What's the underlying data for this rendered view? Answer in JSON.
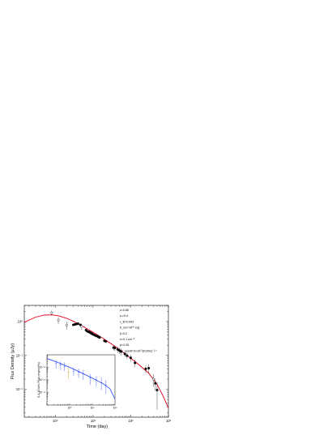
{
  "chart_data": [
    {
      "type": "scatter",
      "xlabel": "Time (day)",
      "ylabel": "Flux Density (μJy)",
      "x_scale": "log",
      "y_scale": "log",
      "xlim": [
        0.15,
        1000
      ],
      "ylim": [
        0.0015,
        3
      ],
      "x_ticks": [
        {
          "v": 1,
          "label": "10⁰"
        },
        {
          "v": 10,
          "label": "10¹"
        },
        {
          "v": 100,
          "label": "10²"
        },
        {
          "v": 1000,
          "label": "10³"
        }
      ],
      "y_ticks": [
        {
          "v": 0.01,
          "label": "10⁻²"
        },
        {
          "v": 0.1,
          "label": "10⁻¹"
        },
        {
          "v": 1,
          "label": "10⁰"
        }
      ],
      "parameters": [
        "z=0.85",
        "εₑ=0.4",
        "ε_B=0.003",
        "E_iso=10⁵⁰ erg",
        "ξ=0.2",
        "n=0.1 cm⁻³",
        "p=2.05",
        "dE_iso/dt=3×10⁵¹(t/100s)⁻²·⁰"
      ],
      "series": [
        {
          "type": "curve",
          "color": "#e0001b",
          "x": [
            0.15,
            0.3,
            0.5,
            0.8,
            1.2,
            2,
            3,
            5,
            8,
            12,
            20,
            40,
            80,
            150,
            300,
            500,
            700,
            1000
          ],
          "y": [
            0.95,
            1.35,
            1.55,
            1.58,
            1.48,
            1.25,
            1.02,
            0.76,
            0.56,
            0.43,
            0.3,
            0.18,
            0.1,
            0.058,
            0.03,
            0.014,
            0.0068,
            0.0028
          ]
        },
        {
          "type": "points",
          "color": "#000000",
          "points": [
            {
              "x": 3.0,
              "y": 0.8,
              "err": 0.06
            },
            {
              "x": 3.3,
              "y": 0.82,
              "err": 0.06
            },
            {
              "x": 3.6,
              "y": 0.84,
              "err": 0.06
            },
            {
              "x": 4.0,
              "y": 0.87,
              "err": 0.06
            },
            {
              "x": 4.6,
              "y": 0.8,
              "err": 0.06
            },
            {
              "x": 6.5,
              "y": 0.56,
              "err": 0.05
            },
            {
              "x": 7.0,
              "y": 0.52,
              "err": 0.05
            },
            {
              "x": 7.5,
              "y": 0.5,
              "err": 0.05
            },
            {
              "x": 8.0,
              "y": 0.49,
              "err": 0.05
            },
            {
              "x": 8.5,
              "y": 0.47,
              "err": 0.05
            },
            {
              "x": 9.0,
              "y": 0.45,
              "err": 0.05
            },
            {
              "x": 9.5,
              "y": 0.44,
              "err": 0.05
            },
            {
              "x": 10,
              "y": 0.42,
              "err": 0.04
            },
            {
              "x": 11,
              "y": 0.4,
              "err": 0.04
            },
            {
              "x": 12,
              "y": 0.38,
              "err": 0.04
            },
            {
              "x": 13,
              "y": 0.37,
              "err": 0.04
            },
            {
              "x": 14,
              "y": 0.35,
              "err": 0.04
            },
            {
              "x": 15,
              "y": 0.34,
              "err": 0.04
            },
            {
              "x": 20,
              "y": 0.27,
              "err": 0.03
            },
            {
              "x": 22,
              "y": 0.26,
              "err": 0.03
            },
            {
              "x": 35,
              "y": 0.17,
              "err": 0.03
            },
            {
              "x": 38,
              "y": 0.165,
              "err": 0.03
            },
            {
              "x": 45,
              "y": 0.15,
              "err": 0.03
            },
            {
              "x": 50,
              "y": 0.14,
              "err": 0.03
            },
            {
              "x": 55,
              "y": 0.13,
              "err": 0.03
            },
            {
              "x": 70,
              "y": 0.11,
              "err": 0.02
            },
            {
              "x": 80,
              "y": 0.098,
              "err": 0.02
            },
            {
              "x": 100,
              "y": 0.085,
              "err": 0.02
            },
            {
              "x": 130,
              "y": 0.06,
              "err": 0.015
            },
            {
              "x": 250,
              "y": 0.04,
              "err": 0.01
            },
            {
              "x": 300,
              "y": 0.042,
              "err": 0.012
            },
            {
              "x": 450,
              "y": 0.015,
              "err": 0.006
            },
            {
              "x": 500,
              "y": 0.0095,
              "err": 0.007
            }
          ]
        },
        {
          "type": "open_points",
          "color": "#000000",
          "points": [
            {
              "x": 0.8,
              "y": 1.8,
              "err": 0.3
            },
            {
              "x": 1.2,
              "y": 1.1,
              "err": 0.25
            },
            {
              "x": 2.0,
              "y": 0.78,
              "err": 0.2
            },
            {
              "x": 5.0,
              "y": 0.72,
              "err": 0.15
            },
            {
              "x": 400,
              "y": 0.02,
              "err": 0.008
            }
          ]
        }
      ]
    },
    {
      "type": "line",
      "ylabel": "0.3-10 keV Flux (erg/cm²/s)",
      "x_scale": "log",
      "y_scale": "log",
      "xlim": [
        0.1,
        100
      ],
      "ylim": [
        1e-15,
        1e-11
      ],
      "x_ticks": [
        {
          "v": 1,
          "label": "10⁰"
        },
        {
          "v": 10,
          "label": "10¹"
        },
        {
          "v": 100,
          "label": "10²"
        }
      ],
      "y_ticks": [
        {
          "v": 1e-14,
          "label": "10⁻¹⁴"
        },
        {
          "v": 1e-13,
          "label": "10⁻¹³"
        },
        {
          "v": 1e-12,
          "label": "10⁻¹²"
        }
      ],
      "series": [
        {
          "type": "curve",
          "color": "#1f3fff",
          "x": [
            0.1,
            0.3,
            1,
            3,
            10,
            30,
            60,
            100
          ],
          "y": [
            5e-12,
            2.5e-12,
            1e-12,
            4e-13,
            1.4e-13,
            5e-14,
            2e-14,
            3e-15
          ]
        },
        {
          "type": "points",
          "color": "#1f3fff",
          "points": [
            {
              "x": 0.25,
              "y": 2e-12,
              "lo": 8e-13,
              "hi": 4e-12
            },
            {
              "x": 0.4,
              "y": 1.5e-12,
              "lo": 6e-13,
              "hi": 3e-12
            },
            {
              "x": 0.6,
              "y": 1.2e-12,
              "lo": 5e-13,
              "hi": 2.5e-12
            },
            {
              "x": 1.5,
              "y": 5e-13,
              "lo": 2e-13,
              "hi": 1e-12
            },
            {
              "x": 2.5,
              "y": 4e-13,
              "lo": 1.5e-13,
              "hi": 8e-13
            },
            {
              "x": 4,
              "y": 3e-13,
              "lo": 1e-13,
              "hi": 6e-13
            },
            {
              "x": 8,
              "y": 1.5e-13,
              "lo": 4e-14,
              "hi": 3e-13
            },
            {
              "x": 15,
              "y": 1e-13,
              "lo": 3e-14,
              "hi": 2e-13
            },
            {
              "x": 25,
              "y": 6e-14,
              "lo": 1.5e-14,
              "hi": 1.5e-13
            },
            {
              "x": 40,
              "y": 4e-14,
              "lo": 8e-15,
              "hi": 1e-13
            }
          ]
        },
        {
          "type": "points",
          "color": "#d08a00",
          "points": [
            {
              "x": 0.9,
              "y": 4e-13,
              "lo": 1.2e-13,
              "hi": 1e-12
            }
          ]
        }
      ]
    }
  ]
}
